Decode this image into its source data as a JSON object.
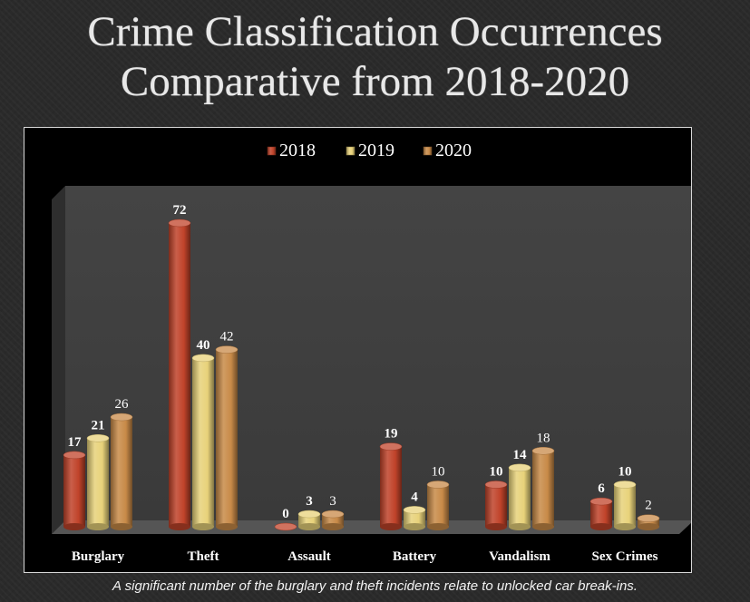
{
  "title_line1": "Crime Classification Occurrences",
  "title_line2": "Comparative from 2018-2020",
  "caption": "A significant number of the burglary and theft incidents relate to unlocked car break-ins.",
  "colors": {
    "2018": "#c0432a",
    "2019": "#e8d27a",
    "2020": "#c88a48"
  },
  "chart_data": {
    "type": "bar",
    "categories": [
      "Burglary",
      "Theft",
      "Assault",
      "Battery",
      "Vandalism",
      "Sex Crimes"
    ],
    "series": [
      {
        "name": "2018",
        "values": [
          17,
          72,
          0,
          19,
          10,
          6
        ]
      },
      {
        "name": "2019",
        "values": [
          21,
          40,
          3,
          4,
          14,
          10
        ]
      },
      {
        "name": "2020",
        "values": [
          26,
          42,
          3,
          10,
          18,
          2
        ]
      }
    ],
    "ylim": [
      0,
      72
    ],
    "legend": "top-center",
    "grid": false,
    "style": "3d-cylinder"
  }
}
